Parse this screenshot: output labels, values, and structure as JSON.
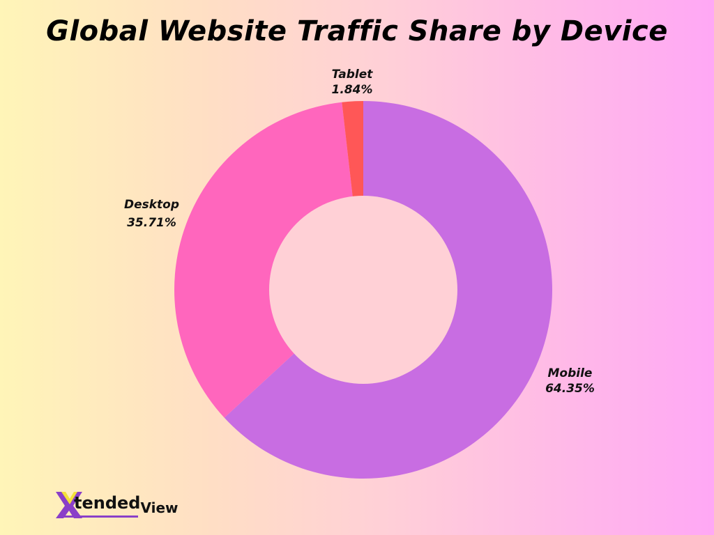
{
  "title": "Global Website Traffic Share by Device",
  "colors": {
    "mobile": "#c86de2",
    "desktop": "#ff66bd",
    "tablet": "#ff5757",
    "background_left": "#fff5b8",
    "background_right": "#ffa8f5"
  },
  "labels": {
    "tablet": {
      "name": "Tablet",
      "value": "1.84%"
    },
    "desktop": {
      "name": "Desktop",
      "value": "35.71%"
    },
    "mobile": {
      "name": "Mobile",
      "value": "64.35%"
    }
  },
  "logo": {
    "mark": "X",
    "brand_main": "tended",
    "brand_tail": "View"
  },
  "chart_data": {
    "type": "pie",
    "style": "donut",
    "title": "Global Website Traffic Share by Device",
    "categories": [
      "Mobile",
      "Desktop",
      "Tablet"
    ],
    "values": [
      64.35,
      35.71,
      1.84
    ],
    "unit": "%",
    "colors": [
      "#c86de2",
      "#ff66bd",
      "#ff5757"
    ],
    "start_angle": "12 o'clock, clockwise",
    "legend": "none (direct labels)"
  }
}
